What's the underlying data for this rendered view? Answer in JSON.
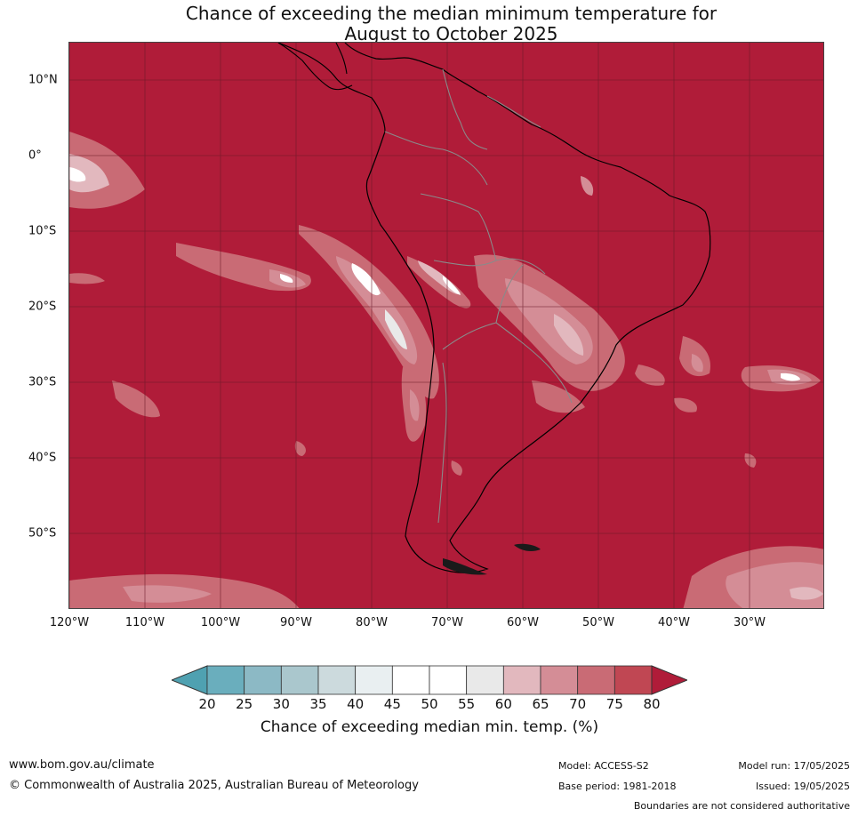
{
  "title_line1": "Chance of exceeding the median minimum temperature for",
  "title_line2": "August to October 2025",
  "latitude_labels": [
    "10°N",
    "0°",
    "10°S",
    "20°S",
    "30°S",
    "40°S",
    "50°S"
  ],
  "longitude_labels": [
    "120°W",
    "110°W",
    "100°W",
    "90°W",
    "80°W",
    "70°W",
    "60°W",
    "50°W",
    "40°W",
    "30°W"
  ],
  "colorbar": {
    "ticks": [
      "20",
      "25",
      "30",
      "35",
      "40",
      "45",
      "50",
      "55",
      "60",
      "65",
      "70",
      "75",
      "80"
    ],
    "bins": [
      {
        "range": "20-25",
        "color": "#6aaebd"
      },
      {
        "range": "25-30",
        "color": "#8cb9c5"
      },
      {
        "range": "30-35",
        "color": "#aac7cd"
      },
      {
        "range": "35-40",
        "color": "#ccdadd"
      },
      {
        "range": "40-45",
        "color": "#e9eff1"
      },
      {
        "range": "45-50",
        "color": "#ffffff"
      },
      {
        "range": "50-55",
        "color": "#ffffff"
      },
      {
        "range": "55-60",
        "color": "#e9e9e9"
      },
      {
        "range": "60-65",
        "color": "#e2b8be"
      },
      {
        "range": "65-70",
        "color": "#d48d96"
      },
      {
        "range": "70-75",
        "color": "#c96b75"
      },
      {
        "range": "75-80",
        "color": "#c04753"
      }
    ],
    "below_color": "#4fa1b1",
    "above_color": "#b01c39",
    "label": "Chance of exceeding median min. temp. (%)"
  },
  "map_colors": {
    "dominant": "#b01c39",
    "gridline": "#6a1a28",
    "coastline": "#000000",
    "borders": "#8a8a8a"
  },
  "footer": {
    "website": "www.bom.gov.au/climate",
    "copyright": "© Commonwealth of Australia 2025, Australian Bureau of Meteorology",
    "model": "Model: ACCESS-S2",
    "model_run": "Model run: 17/05/2025",
    "base_period": "Base period: 1981-2018",
    "issued": "Issued: 19/05/2025",
    "disclaimer": "Boundaries are not considered authoritative"
  }
}
